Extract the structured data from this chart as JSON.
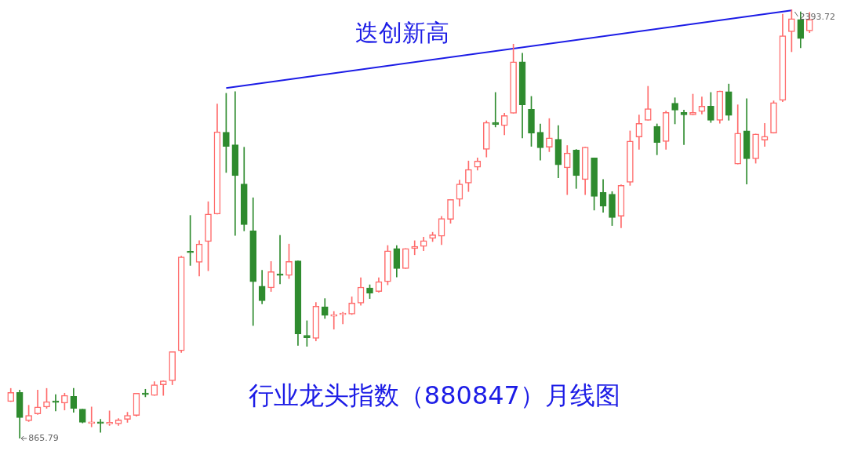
{
  "chart_data": {
    "type": "candlestick",
    "title": "行业龙头指数（880847）月线图",
    "categories": [
      null,
      null,
      null,
      null,
      null,
      null,
      null,
      null,
      null,
      null,
      null,
      null,
      null,
      null,
      null,
      null,
      null,
      null,
      null,
      null,
      null,
      null,
      null,
      null,
      null,
      null,
      null,
      null,
      null,
      null,
      null,
      null,
      null,
      null,
      null,
      null,
      null,
      null,
      null,
      null,
      null,
      null,
      null,
      null,
      null,
      null,
      null,
      null,
      null,
      null,
      null,
      null,
      null,
      null,
      null,
      null,
      null,
      null,
      null,
      null,
      null,
      null,
      null,
      null,
      null,
      null,
      null,
      null,
      null,
      null,
      null,
      null,
      null,
      null,
      null,
      null,
      null,
      null,
      null,
      null,
      null,
      null,
      null,
      null,
      null,
      null,
      null,
      null,
      null,
      null
    ],
    "ohlc": [
      [
        997,
        1044,
        997,
        1030
      ],
      [
        1030,
        1038,
        865.79,
        940
      ],
      [
        929,
        984,
        926,
        948
      ],
      [
        953,
        1038,
        951,
        978
      ],
      [
        978,
        1044,
        973,
        997
      ],
      [
        997,
        1022,
        964,
        994
      ],
      [
        992,
        1027,
        967,
        1019
      ],
      [
        1016,
        1044,
        959,
        973
      ],
      [
        970,
        970,
        921,
        923
      ],
      [
        919,
        978,
        907,
        921
      ],
      [
        921,
        934,
        888,
        919
      ],
      [
        918,
        964,
        912,
        923
      ],
      [
        918,
        937,
        912,
        932
      ],
      [
        934,
        959,
        923,
        948
      ],
      [
        948,
        1027,
        945,
        1027
      ],
      [
        1023,
        1041,
        1014,
        1022
      ],
      [
        1019,
        1068,
        1019,
        1057
      ],
      [
        1057,
        1071,
        1019,
        1071
      ],
      [
        1071,
        1175,
        1057,
        1175
      ],
      [
        1178,
        1515,
        1172,
        1512
      ],
      [
        1528,
        1660,
        1482,
        1527
      ],
      [
        1493,
        1570,
        1444,
        1558
      ],
      [
        1567,
        1709,
        1463,
        1665
      ],
      [
        1665,
        2057,
        1665,
        1958
      ],
      [
        1956,
        2095,
        1813,
        1906
      ],
      [
        1912,
        2101,
        1589,
        1802
      ],
      [
        1772,
        1903,
        1605,
        1627
      ],
      [
        1605,
        1723,
        1268,
        1424
      ],
      [
        1408,
        1465,
        1345,
        1356
      ],
      [
        1402,
        1496,
        1389,
        1460
      ],
      [
        1448,
        1589,
        1416,
        1446
      ],
      [
        1446,
        1558,
        1435,
        1496
      ],
      [
        1498,
        1498,
        1197,
        1238
      ],
      [
        1233,
        1285,
        1194,
        1224
      ],
      [
        1222,
        1350,
        1213,
        1337
      ],
      [
        1334,
        1364,
        1293,
        1304
      ],
      [
        1301,
        1318,
        1255,
        1307
      ],
      [
        1307,
        1315,
        1274,
        1309
      ],
      [
        1309,
        1370,
        1307,
        1348
      ],
      [
        1348,
        1438,
        1340,
        1405
      ],
      [
        1402,
        1413,
        1364,
        1383
      ],
      [
        1389,
        1438,
        1386,
        1424
      ],
      [
        1424,
        1553,
        1413,
        1534
      ],
      [
        1542,
        1553,
        1441,
        1471
      ],
      [
        1471,
        1542,
        1471,
        1542
      ],
      [
        1542,
        1570,
        1520,
        1550
      ],
      [
        1550,
        1583,
        1534,
        1570
      ],
      [
        1578,
        1600,
        1567,
        1591
      ],
      [
        1586,
        1657,
        1556,
        1649
      ],
      [
        1646,
        1717,
        1632,
        1717
      ],
      [
        1717,
        1786,
        1693,
        1772
      ],
      [
        1775,
        1854,
        1745,
        1824
      ],
      [
        1832,
        1865,
        1821,
        1854
      ],
      [
        1895,
        1997,
        1868,
        1991
      ],
      [
        1991,
        2098,
        1975,
        1983
      ],
      [
        1980,
        2024,
        1947,
        2016
      ],
      [
        2024,
        2270,
        2024,
        2207
      ],
      [
        2207,
        2238,
        1936,
        2054
      ],
      [
        2038,
        2084,
        1906,
        1953
      ],
      [
        1956,
        1986,
        1857,
        1901
      ],
      [
        1903,
        2005,
        1887,
        1936
      ],
      [
        1931,
        1980,
        1794,
        1840
      ],
      [
        1830,
        1909,
        1734,
        1882
      ],
      [
        1893,
        1895,
        1756,
        1802
      ],
      [
        1788,
        1903,
        1734,
        1903
      ],
      [
        1865,
        1865,
        1679,
        1728
      ],
      [
        1742,
        1788,
        1671,
        1693
      ],
      [
        1736,
        1745,
        1624,
        1652
      ],
      [
        1657,
        1769,
        1616,
        1767
      ],
      [
        1778,
        1961,
        1767,
        1925
      ],
      [
        1939,
        2018,
        1895,
        1988
      ],
      [
        1999,
        2120,
        1999,
        2040
      ],
      [
        1977,
        1986,
        1876,
        1920
      ],
      [
        1923,
        2032,
        1895,
        2027
      ],
      [
        2060,
        2079,
        1986,
        2035
      ],
      [
        2027,
        2035,
        1912,
        2018
      ],
      [
        2018,
        2092,
        2018,
        2027
      ],
      [
        2030,
        2082,
        2021,
        2049
      ],
      [
        2049,
        2098,
        1991,
        1999
      ],
      [
        1999,
        2103,
        1988,
        2103
      ],
      [
        2101,
        2128,
        1999,
        2016
      ],
      [
        1843,
        2054,
        1843,
        1953
      ],
      [
        1961,
        2076,
        1772,
        1862
      ],
      [
        1862,
        1950,
        1846,
        1950
      ],
      [
        1928,
        1988,
        1906,
        1942
      ],
      [
        1953,
        2068,
        1953,
        2062
      ],
      [
        2070,
        2377,
        2065,
        2300
      ],
      [
        2314,
        2393.72,
        2243,
        2361
      ],
      [
        2358,
        2385,
        2257,
        2290
      ],
      [
        2317,
        2383,
        2311,
        2358
      ]
    ],
    "colors": [
      "#ff6b6b",
      "#2e8b2e",
      "#ff6b6b",
      "#ff6b6b",
      "#ff6b6b",
      "#2e8b2e",
      "#ff6b6b",
      "#2e8b2e",
      "#2e8b2e",
      "#ff6b6b",
      "#2e8b2e",
      "#ff6b6b",
      "#ff6b6b",
      "#ff6b6b",
      "#ff6b6b",
      "#2e8b2e",
      "#ff6b6b",
      "#ff6b6b",
      "#ff6b6b",
      "#ff6b6b",
      "#2e8b2e",
      "#ff6b6b",
      "#ff6b6b",
      "#ff6b6b",
      "#2e8b2e",
      "#2e8b2e",
      "#2e8b2e",
      "#2e8b2e",
      "#2e8b2e",
      "#ff6b6b",
      "#2e8b2e",
      "#ff6b6b",
      "#2e8b2e",
      "#2e8b2e",
      "#ff6b6b",
      "#2e8b2e",
      "#ff6b6b",
      "#ff6b6b",
      "#ff6b6b",
      "#ff6b6b",
      "#2e8b2e",
      "#ff6b6b",
      "#ff6b6b",
      "#2e8b2e",
      "#ff6b6b",
      "#ff6b6b",
      "#ff6b6b",
      "#ff6b6b",
      "#ff6b6b",
      "#ff6b6b",
      "#ff6b6b",
      "#ff6b6b",
      "#ff6b6b",
      "#ff6b6b",
      "#2e8b2e",
      "#ff6b6b",
      "#ff6b6b",
      "#2e8b2e",
      "#2e8b2e",
      "#2e8b2e",
      "#ff6b6b",
      "#2e8b2e",
      "#ff6b6b",
      "#2e8b2e",
      "#ff6b6b",
      "#2e8b2e",
      "#2e8b2e",
      "#2e8b2e",
      "#ff6b6b",
      "#ff6b6b",
      "#ff6b6b",
      "#ff6b6b",
      "#2e8b2e",
      "#ff6b6b",
      "#2e8b2e",
      "#2e8b2e",
      "#ff6b6b",
      "#ff6b6b",
      "#2e8b2e",
      "#ff6b6b",
      "#2e8b2e",
      "#ff6b6b",
      "#2e8b2e",
      "#ff6b6b",
      "#ff6b6b",
      "#ff6b6b",
      "#ff6b6b",
      "#ff6b6b",
      "#2e8b2e",
      "#ff6b6b"
    ],
    "series": [
      {
        "type": "line",
        "color": "#1c1ce6",
        "values": [
          null,
          null,
          null,
          null,
          null,
          null,
          null,
          null,
          null,
          null,
          null,
          null,
          null,
          null,
          null,
          null,
          null,
          null,
          null,
          null,
          null,
          null,
          null,
          null,
          2114,
          null,
          null,
          null,
          null,
          null,
          null,
          null,
          null,
          null,
          null,
          null,
          null,
          null,
          null,
          null,
          null,
          null,
          null,
          null,
          null,
          null,
          null,
          null,
          null,
          null,
          null,
          null,
          null,
          null,
          null,
          null,
          null,
          null,
          null,
          null,
          null,
          null,
          null,
          null,
          null,
          null,
          null,
          null,
          null,
          null,
          null,
          null,
          null,
          null,
          null,
          null,
          null,
          null,
          null,
          null,
          null,
          null,
          null,
          null,
          null,
          null,
          null,
          2390,
          null,
          null
        ]
      }
    ],
    "annotations": [
      "迭创新高",
      "865.79",
      "2393.72"
    ]
  }
}
